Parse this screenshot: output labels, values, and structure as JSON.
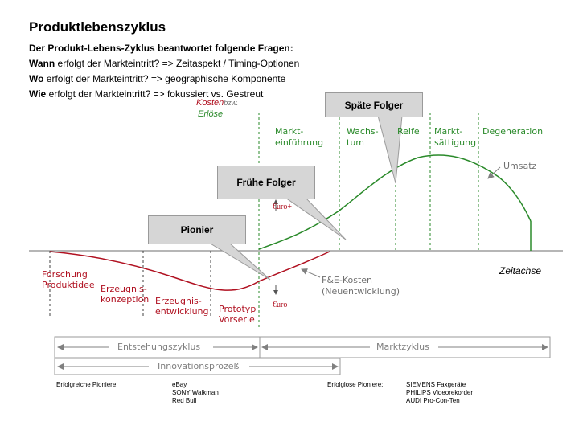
{
  "title": "Produktlebenszyklus",
  "questions": {
    "intro": "Der Produkt-Lebens-Zyklus beantwortet folgende Fragen:",
    "wann_key": "Wann",
    "wann_text": " erfolgt der Markteintritt? => Zeitaspekt / Timing-Optionen",
    "wo_key": "Wo",
    "wo_text": " erfolgt der Markteintritt? => geographische Komponente",
    "wie_key": "Wie",
    "wie_text": " erfolgt der Markteintritt? => fokussiert vs. Gestreut"
  },
  "axis": {
    "y_label_1": "Kosten",
    "y_label_bzw": "bzw.",
    "y_label_2": "Erlöse",
    "x_label": "Zeitachse",
    "euro_plus": "€uro+",
    "euro_minus": "€uro -"
  },
  "market_phases": {
    "einfuehrung_1": "Markt-",
    "einfuehrung_2": "einführung",
    "wachstum_1": "Wachs-",
    "wachstum_2": "tum",
    "reife": "Reife",
    "saettigung_1": "Markt-",
    "saettigung_2": "sättigung",
    "degeneration": "Degeneration"
  },
  "curves": {
    "umsatz": "Umsatz",
    "fe_kosten_1": "F&E-Kosten",
    "fe_kosten_2": "(Neuentwicklung)"
  },
  "development_stages": {
    "forschung_1": "Forschung",
    "forschung_2": "Produktidee",
    "konzeption_1": "Erzeugnis-",
    "konzeption_2": "konzeption",
    "entwicklung_1": "Erzeugnis-",
    "entwicklung_2": "entwicklung",
    "prototyp_1": "Prototyp",
    "prototyp_2": "Vorserie"
  },
  "callouts": {
    "spaete_folger": "Späte Folger",
    "fruehe_folger": "Frühe Folger",
    "pionier": "Pionier"
  },
  "cycles": {
    "entstehung": "Entstehungszyklus",
    "markt": "Marktzyklus",
    "innovation": "Innovationsprozeß"
  },
  "examples": {
    "success_label": "Erfolgreiche Pioniere:",
    "success_items": [
      "eBay",
      "SONY Walkman",
      "Red Bull"
    ],
    "failure_label": "Erfolglose Pioniere:",
    "failure_items": [
      "SIEMENS Faxgeräte",
      "PHILIPS Videorekorder",
      "AUDI Pro-Con-Ten"
    ]
  },
  "colors": {
    "revenue": "#2a8a2a",
    "cost": "#b01020",
    "callout_fill": "#d6d6d6",
    "axis": "#8a8a8a"
  }
}
